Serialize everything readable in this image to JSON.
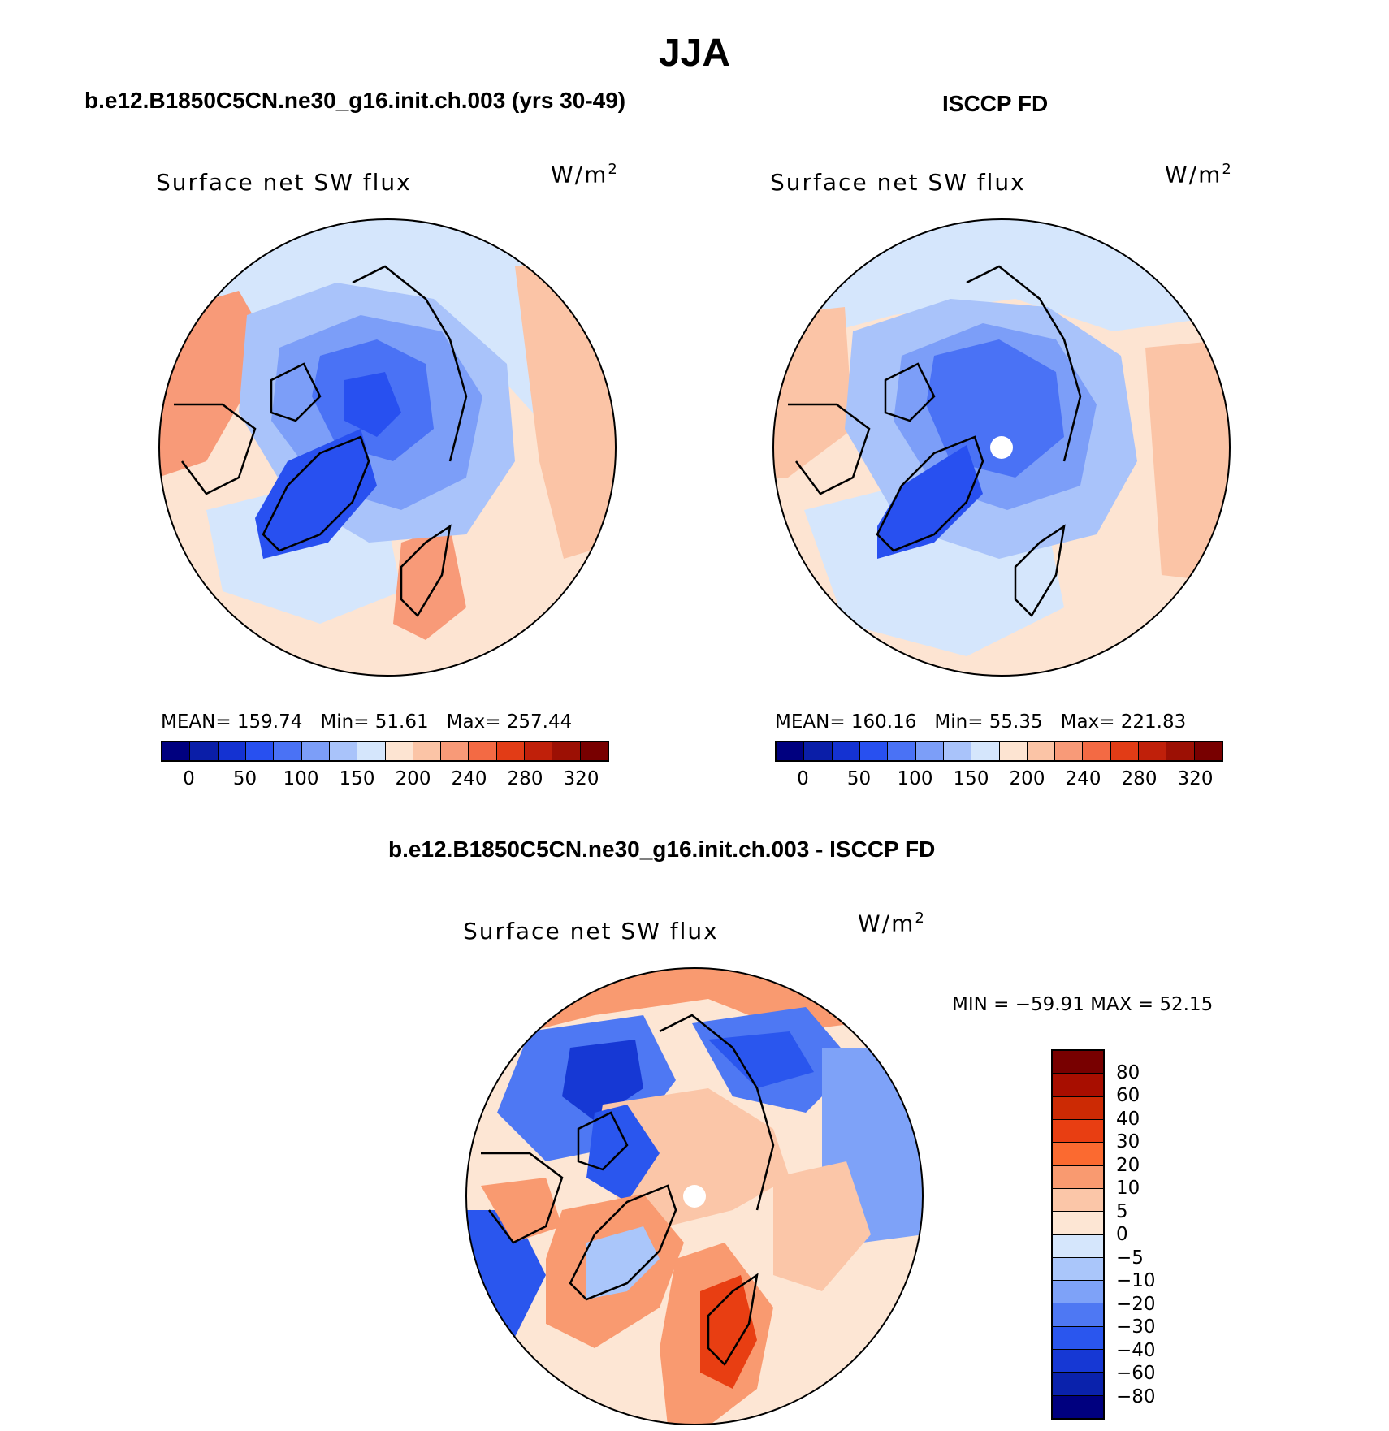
{
  "title": "JJA",
  "panels": [
    {
      "id": "model",
      "title": "b.e12.B1850C5CN.ne30_g16.init.ch.003 (yrs 30-49)",
      "variable": "Surface net SW flux",
      "units_base": "W/m",
      "units_exp": "2",
      "stats": {
        "mean": "MEAN= 159.74",
        "min": "Min=   51.61",
        "max": "Max= 257.44"
      }
    },
    {
      "id": "obs",
      "title": "ISCCP FD",
      "variable": "Surface net SW flux",
      "units_base": "W/m",
      "units_exp": "2",
      "stats": {
        "mean": "MEAN= 160.16",
        "min": "Min=   55.35",
        "max": "Max= 221.83"
      }
    },
    {
      "id": "diff",
      "title": "b.e12.B1850C5CN.ne30_g16.init.ch.003 - ISCCP FD",
      "variable": "Surface net SW flux",
      "units_base": "W/m",
      "units_exp": "2",
      "stats_text": "MIN = −59.91  MAX =   52.15"
    }
  ],
  "colorbar_abs": {
    "colors": [
      "#00007f",
      "#0a1ea8",
      "#1432d2",
      "#2850f0",
      "#4a72f5",
      "#7c9ef8",
      "#a9c3fa",
      "#d5e6fc",
      "#fde4d2",
      "#fbc4a6",
      "#f89a78",
      "#f36a44",
      "#e23c16",
      "#c0200a",
      "#9c1004",
      "#780000"
    ],
    "tick_labels": [
      "0",
      "50",
      "100",
      "150",
      "200",
      "240",
      "280",
      "320"
    ]
  },
  "colorbar_diff": {
    "colors": [
      "#780000",
      "#a80e00",
      "#cc2a04",
      "#e83e12",
      "#fb6a30",
      "#f99a70",
      "#fbc6a8",
      "#fde6d4",
      "#d5e6fc",
      "#aac6fa",
      "#7ea2f8",
      "#4e78f3",
      "#2a56ee",
      "#1638d4",
      "#0a22ac",
      "#00007f"
    ],
    "tick_labels": [
      "80",
      "60",
      "40",
      "30",
      "20",
      "10",
      "5",
      "0",
      "−5",
      "−10",
      "−20",
      "−30",
      "−40",
      "−60",
      "−80"
    ]
  }
}
